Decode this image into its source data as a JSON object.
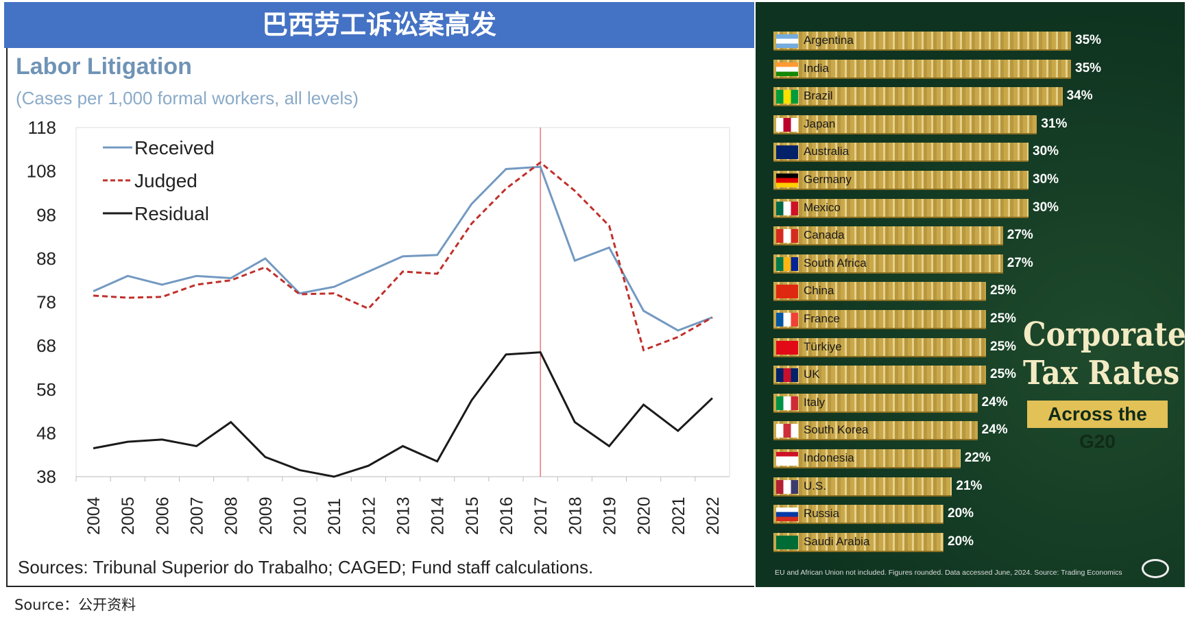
{
  "header": {
    "title": "巴西劳工诉讼案高发"
  },
  "source_note": "Source：公开资料",
  "chart_data": [
    {
      "type": "line",
      "title": "Labor Litigation",
      "subtitle": "(Cases per 1,000 formal workers, all levels)",
      "x": [
        2004,
        2005,
        2006,
        2007,
        2008,
        2009,
        2010,
        2011,
        2012,
        2013,
        2014,
        2015,
        2016,
        2017,
        2018,
        2019,
        2020,
        2021,
        2022
      ],
      "ylim": [
        38,
        118
      ],
      "yticks": [
        118,
        108,
        98,
        88,
        78,
        68,
        58,
        48,
        38
      ],
      "legend": "top-left",
      "grid": false,
      "vline_at": 2017,
      "series": [
        {
          "name": "Received",
          "color": "#7399c1",
          "style": "solid",
          "values": [
            80.5,
            84,
            82,
            84,
            83.5,
            88,
            80,
            81.5,
            85,
            88.5,
            88.8,
            100.5,
            108.5,
            109,
            87.5,
            90.5,
            76,
            71.5,
            74.5
          ]
        },
        {
          "name": "Judged",
          "color": "#c0302b",
          "style": "dashed",
          "values": [
            79.5,
            79,
            79.2,
            82,
            83,
            86,
            79.8,
            80,
            76.5,
            85,
            84.5,
            96,
            104,
            110,
            103.5,
            95.5,
            67,
            70,
            74.5
          ]
        },
        {
          "name": "Residual",
          "color": "#1a1a1a",
          "style": "solid",
          "values": [
            44.5,
            46,
            46.5,
            45,
            50.5,
            42.5,
            39.5,
            38,
            40.5,
            45,
            41.5,
            55.5,
            66,
            66.5,
            50.5,
            45,
            54.5,
            48.5,
            56
          ]
        }
      ],
      "sources": "Sources: Tribunal Superior do Trabalho; CAGED; Fund staff calculations."
    },
    {
      "type": "bar",
      "orientation": "horizontal",
      "title": "Corporate Tax Rates",
      "subtitle": "Across the G20",
      "categories": [
        "Argentina",
        "India",
        "Brazil",
        "Japan",
        "Australia",
        "Germany",
        "Mexico",
        "Canada",
        "South Africa",
        "China",
        "France",
        "Türkiye",
        "UK",
        "Italy",
        "South Korea",
        "Indonesia",
        "U.S.",
        "Russia",
        "Saudi Arabia"
      ],
      "values": [
        35,
        35,
        34,
        31,
        30,
        30,
        30,
        27,
        27,
        25,
        25,
        25,
        25,
        24,
        24,
        22,
        21,
        20,
        20
      ],
      "labels": [
        "35%",
        "35%",
        "34%",
        "31%",
        "30%",
        "30%",
        "30%",
        "27%",
        "27%",
        "25%",
        "25%",
        "25%",
        "25%",
        "24%",
        "24%",
        "22%",
        "21%",
        "20%",
        "20%"
      ],
      "flags": [
        [
          "#74acdf",
          "#fff",
          "#74acdf"
        ],
        [
          "#ff9933",
          "#fff",
          "#138808"
        ],
        [
          "#009c3b",
          "#ffdf00",
          "#009c3b"
        ],
        [
          "#fff",
          "#bc002d",
          "#fff"
        ],
        [
          "#012169",
          "#012169",
          "#012169"
        ],
        [
          "#000",
          "#dd0000",
          "#ffce00"
        ],
        [
          "#006847",
          "#fff",
          "#ce1126"
        ],
        [
          "#d52b1e",
          "#fff",
          "#d52b1e"
        ],
        [
          "#007a4d",
          "#ffb612",
          "#002395"
        ],
        [
          "#de2910",
          "#de2910",
          "#de2910"
        ],
        [
          "#0055a4",
          "#fff",
          "#ef4135"
        ],
        [
          "#e30a17",
          "#e30a17",
          "#e30a17"
        ],
        [
          "#012169",
          "#c8102e",
          "#012169"
        ],
        [
          "#009246",
          "#fff",
          "#ce2b37"
        ],
        [
          "#fff",
          "#cd2e3a",
          "#fff"
        ],
        [
          "#ce1126",
          "#fff",
          "#fff"
        ],
        [
          "#b22234",
          "#fff",
          "#3c3b6e"
        ],
        [
          "#fff",
          "#0039a6",
          "#d52b1e"
        ],
        [
          "#006c35",
          "#006c35",
          "#006c35"
        ]
      ],
      "footer": "EU and African Union not included. Figures rounded. Data accessed June, 2024. Source: Trading Economics"
    }
  ]
}
